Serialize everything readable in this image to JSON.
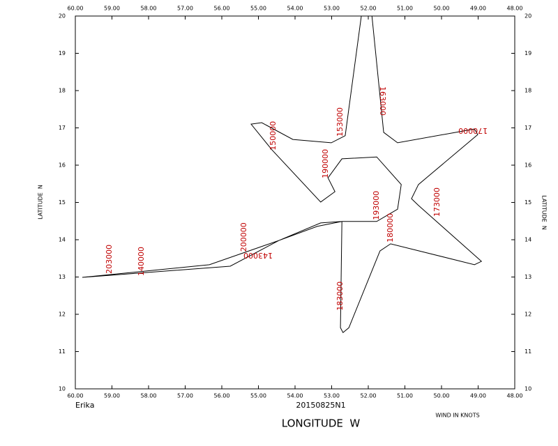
{
  "chart_data": {
    "type": "line",
    "storm": "Erika",
    "mission": "20150825N1",
    "wind_note": "WIND IN KNOTS",
    "xlabel": "LONGITUDE  W",
    "ylabel": "LATITUDE  N",
    "xlim": [
      60,
      48
    ],
    "ylim": [
      10,
      20
    ],
    "xticks": [
      {
        "value": 60,
        "label": "60.00"
      },
      {
        "value": 59,
        "label": "59.00"
      },
      {
        "value": 58,
        "label": "58.00"
      },
      {
        "value": 57,
        "label": "57.00"
      },
      {
        "value": 56,
        "label": "56.00"
      },
      {
        "value": 55,
        "label": "55.00"
      },
      {
        "value": 54,
        "label": "54.00"
      },
      {
        "value": 53,
        "label": "53.00"
      },
      {
        "value": 52,
        "label": "52.00"
      },
      {
        "value": 51,
        "label": "51.00"
      },
      {
        "value": 50,
        "label": "50.00"
      },
      {
        "value": 49,
        "label": "49.00"
      },
      {
        "value": 48,
        "label": "48.00"
      }
    ],
    "yticks": [
      10,
      11,
      12,
      13,
      14,
      15,
      16,
      17,
      18,
      19,
      20
    ],
    "series": [
      {
        "color": "#000000",
        "x": [
          59.81,
          56.34,
          54.44,
          53.39,
          52.72,
          51.77,
          51.2,
          51.1,
          51.77,
          52.72,
          53.1,
          52.91,
          53.3,
          54.63,
          55.2,
          54.91,
          54.06,
          53.01,
          52.63,
          52.19,
          51.9,
          51.58,
          51.2,
          49.1,
          49.01,
          50.63,
          50.82,
          50.63,
          48.91,
          49.1,
          51.39,
          51.68,
          52.53,
          52.69,
          52.76,
          52.72,
          53.3,
          54.44,
          55.77,
          59.81
        ],
        "values": [
          12.99,
          13.33,
          13.98,
          14.36,
          14.49,
          14.49,
          14.82,
          15.48,
          16.22,
          16.17,
          15.66,
          15.29,
          15.01,
          16.41,
          17.1,
          17.14,
          16.69,
          16.6,
          16.79,
          20,
          20,
          16.88,
          16.6,
          16.97,
          16.82,
          15.48,
          15.1,
          14.92,
          13.42,
          13.33,
          13.89,
          13.7,
          11.64,
          11.51,
          11.64,
          14.49,
          14.45,
          13.98,
          13.29,
          12.99
        ]
      }
    ],
    "annotations": [
      {
        "label": "203000",
        "x": 59.07,
        "y": 13.48
      },
      {
        "label": "140000",
        "x": 58.19,
        "y": 13.42
      },
      {
        "label": "200000",
        "x": 55.39,
        "y": 14.07
      },
      {
        "label": "143000",
        "x": 55.01,
        "y": 13.59
      },
      {
        "label": "150000",
        "x": 54.59,
        "y": 16.79
      },
      {
        "label": "153000",
        "x": 52.76,
        "y": 17.16
      },
      {
        "label": "190000",
        "x": 53.16,
        "y": 16.04
      },
      {
        "label": "163000",
        "x": 51.62,
        "y": 17.72
      },
      {
        "label": "170000",
        "x": 49.14,
        "y": 16.93
      },
      {
        "label": "193000",
        "x": 51.77,
        "y": 14.92
      },
      {
        "label": "180000",
        "x": 51.39,
        "y": 14.32
      },
      {
        "label": "173000",
        "x": 50.11,
        "y": 15.01
      },
      {
        "label": "183000",
        "x": 52.76,
        "y": 12.49
      }
    ]
  }
}
